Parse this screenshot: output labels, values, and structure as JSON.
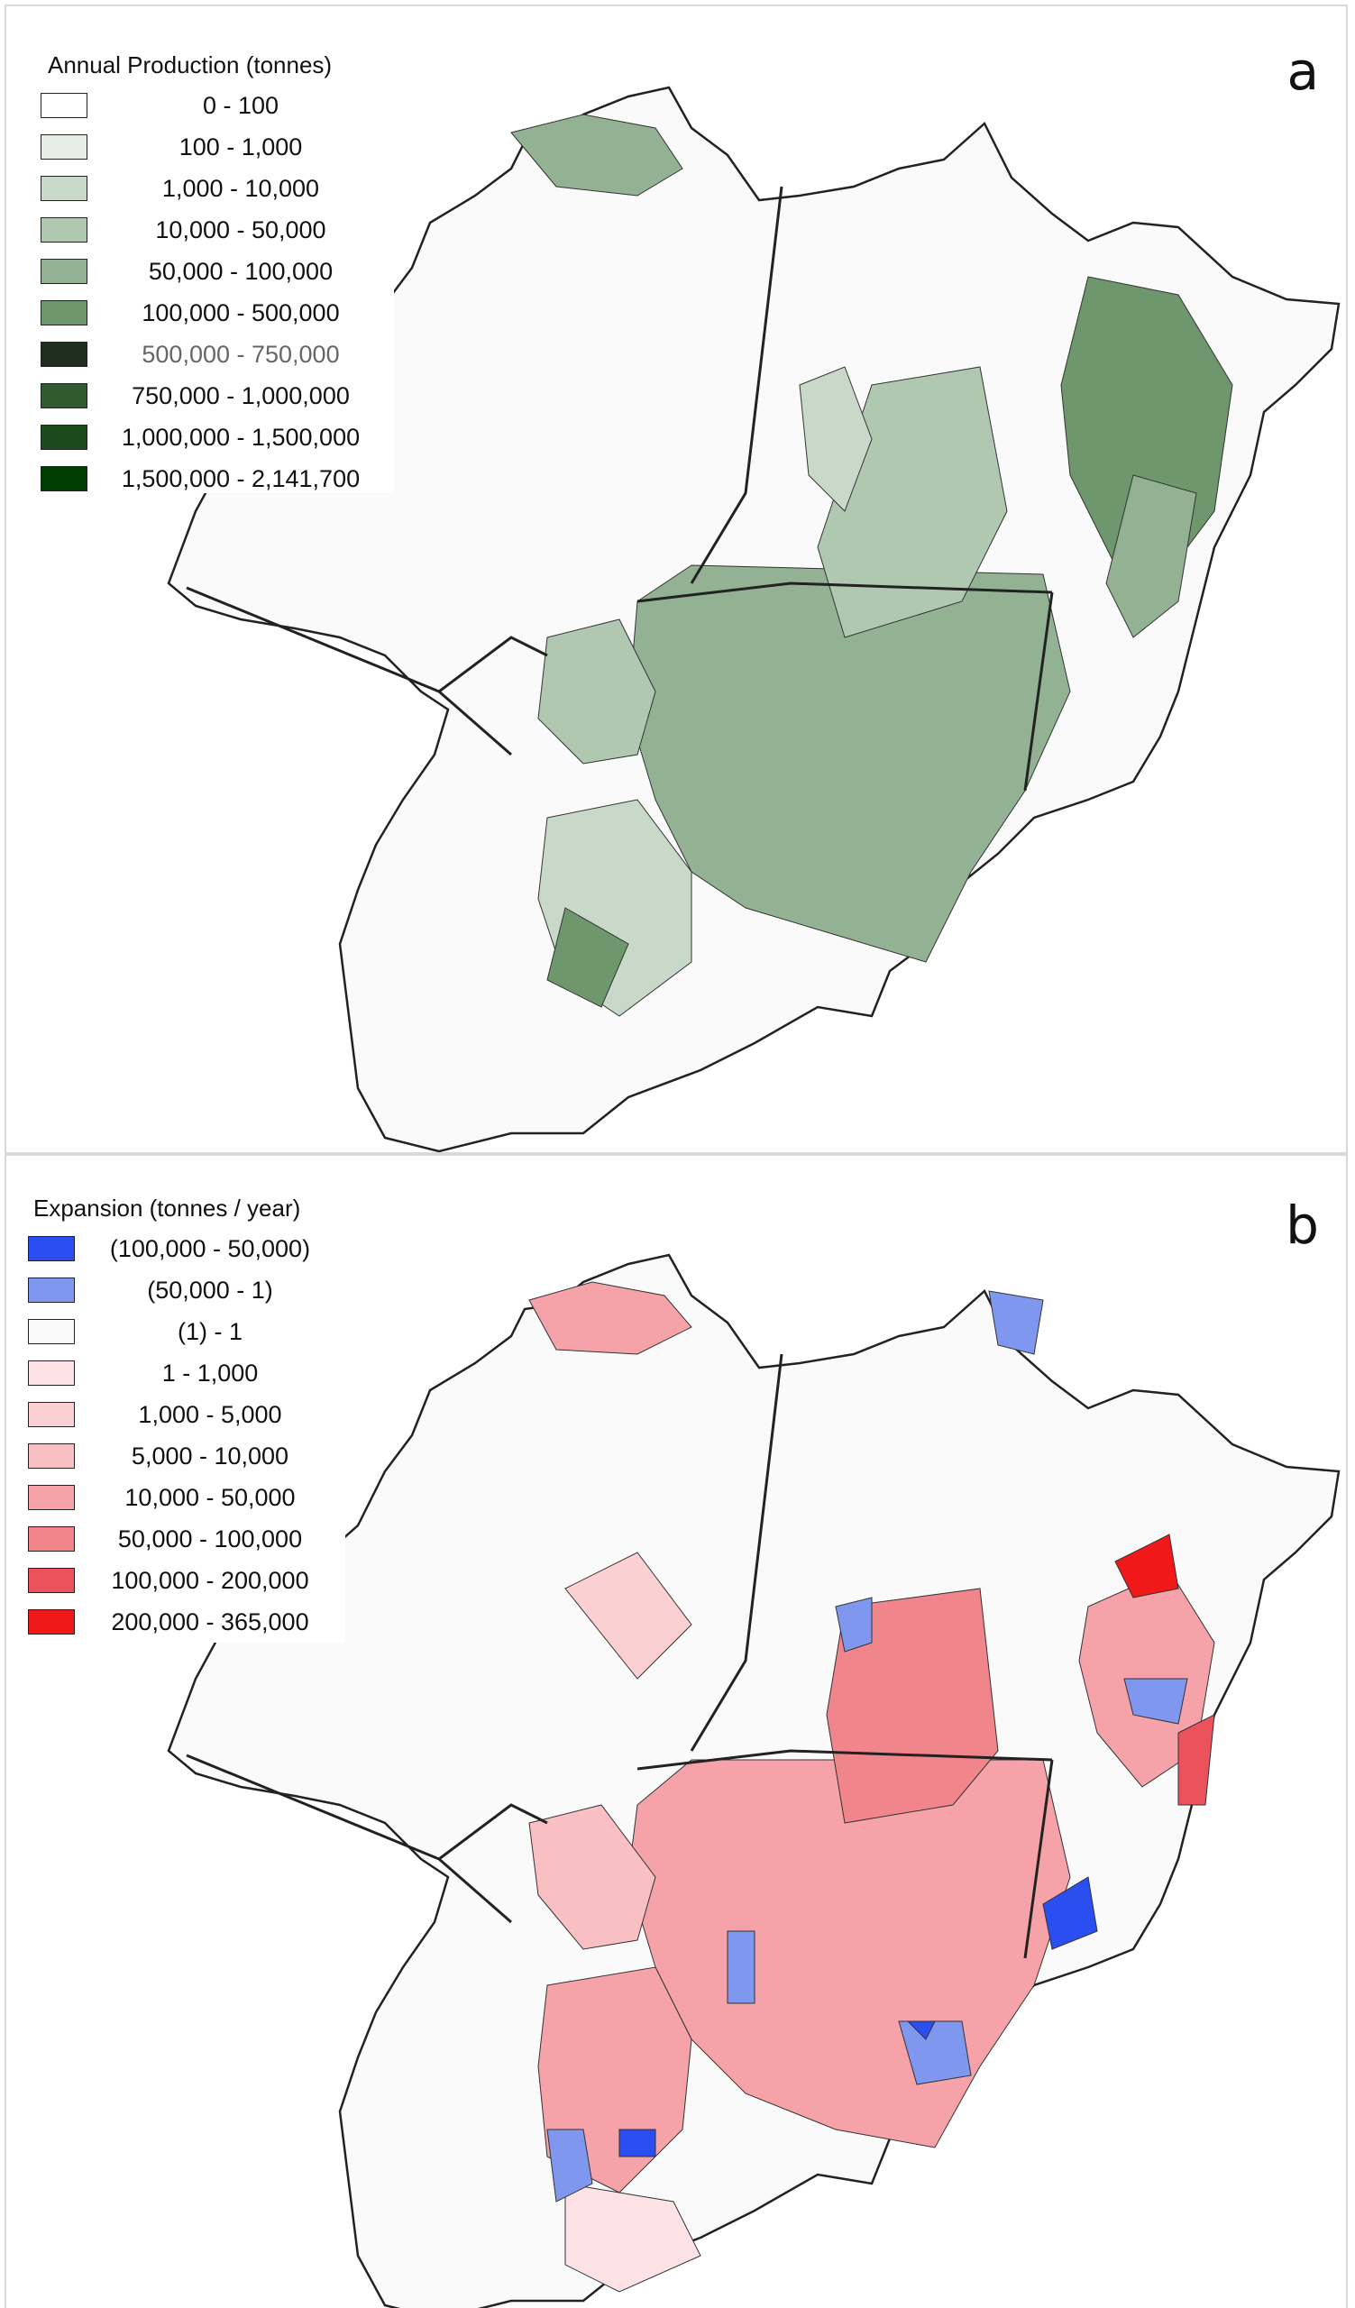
{
  "panels": [
    {
      "id": "a",
      "letter": "a",
      "legend_title": "Annual Production (tonnes)",
      "classes": [
        {
          "label": "0 - 100",
          "color": "#ffffff"
        },
        {
          "label": "100 - 1,000",
          "color": "#e6ece6"
        },
        {
          "label": "1,000 - 10,000",
          "color": "#c9d9c9"
        },
        {
          "label": "10,000 - 50,000",
          "color": "#b0c7b0"
        },
        {
          "label": "50,000 - 100,000",
          "color": "#93b293"
        },
        {
          "label": "100,000 - 500,000",
          "color": "#6e976e"
        },
        {
          "label": "500,000 - 750,000",
          "color": "#1f2e1f"
        },
        {
          "label": "750,000 - 1,000,000",
          "color": "#2f5a2f"
        },
        {
          "label": "1,000,000 - 1,500,000",
          "color": "#1c4a1c"
        },
        {
          "label": "1,500,000 - 2,141,700",
          "color": "#003d00"
        }
      ]
    },
    {
      "id": "b",
      "letter": "b",
      "legend_title": "Expansion (tonnes / year)",
      "classes": [
        {
          "label": "(100,000 - 50,000)",
          "color": "#2a4ef0"
        },
        {
          "label": "(50,000 - 1)",
          "color": "#7f97ee"
        },
        {
          "label": "(1) - 1",
          "color": "#fafafa"
        },
        {
          "label": "1 - 1,000",
          "color": "#fde3e6"
        },
        {
          "label": "1,000 - 5,000",
          "color": "#fbd0d3"
        },
        {
          "label": "5,000 - 10,000",
          "color": "#f9c0c4"
        },
        {
          "label": "10,000 - 50,000",
          "color": "#f5a3a8"
        },
        {
          "label": "50,000 - 100,000",
          "color": "#f0858c"
        },
        {
          "label": "100,000 - 200,000",
          "color": "#ec525c"
        },
        {
          "label": "200,000 - 365,000",
          "color": "#f01818"
        }
      ]
    }
  ],
  "colors": {
    "panel_border": "#d9d9d9",
    "region_outline": "#222222",
    "background_fill": "#fafafa"
  }
}
